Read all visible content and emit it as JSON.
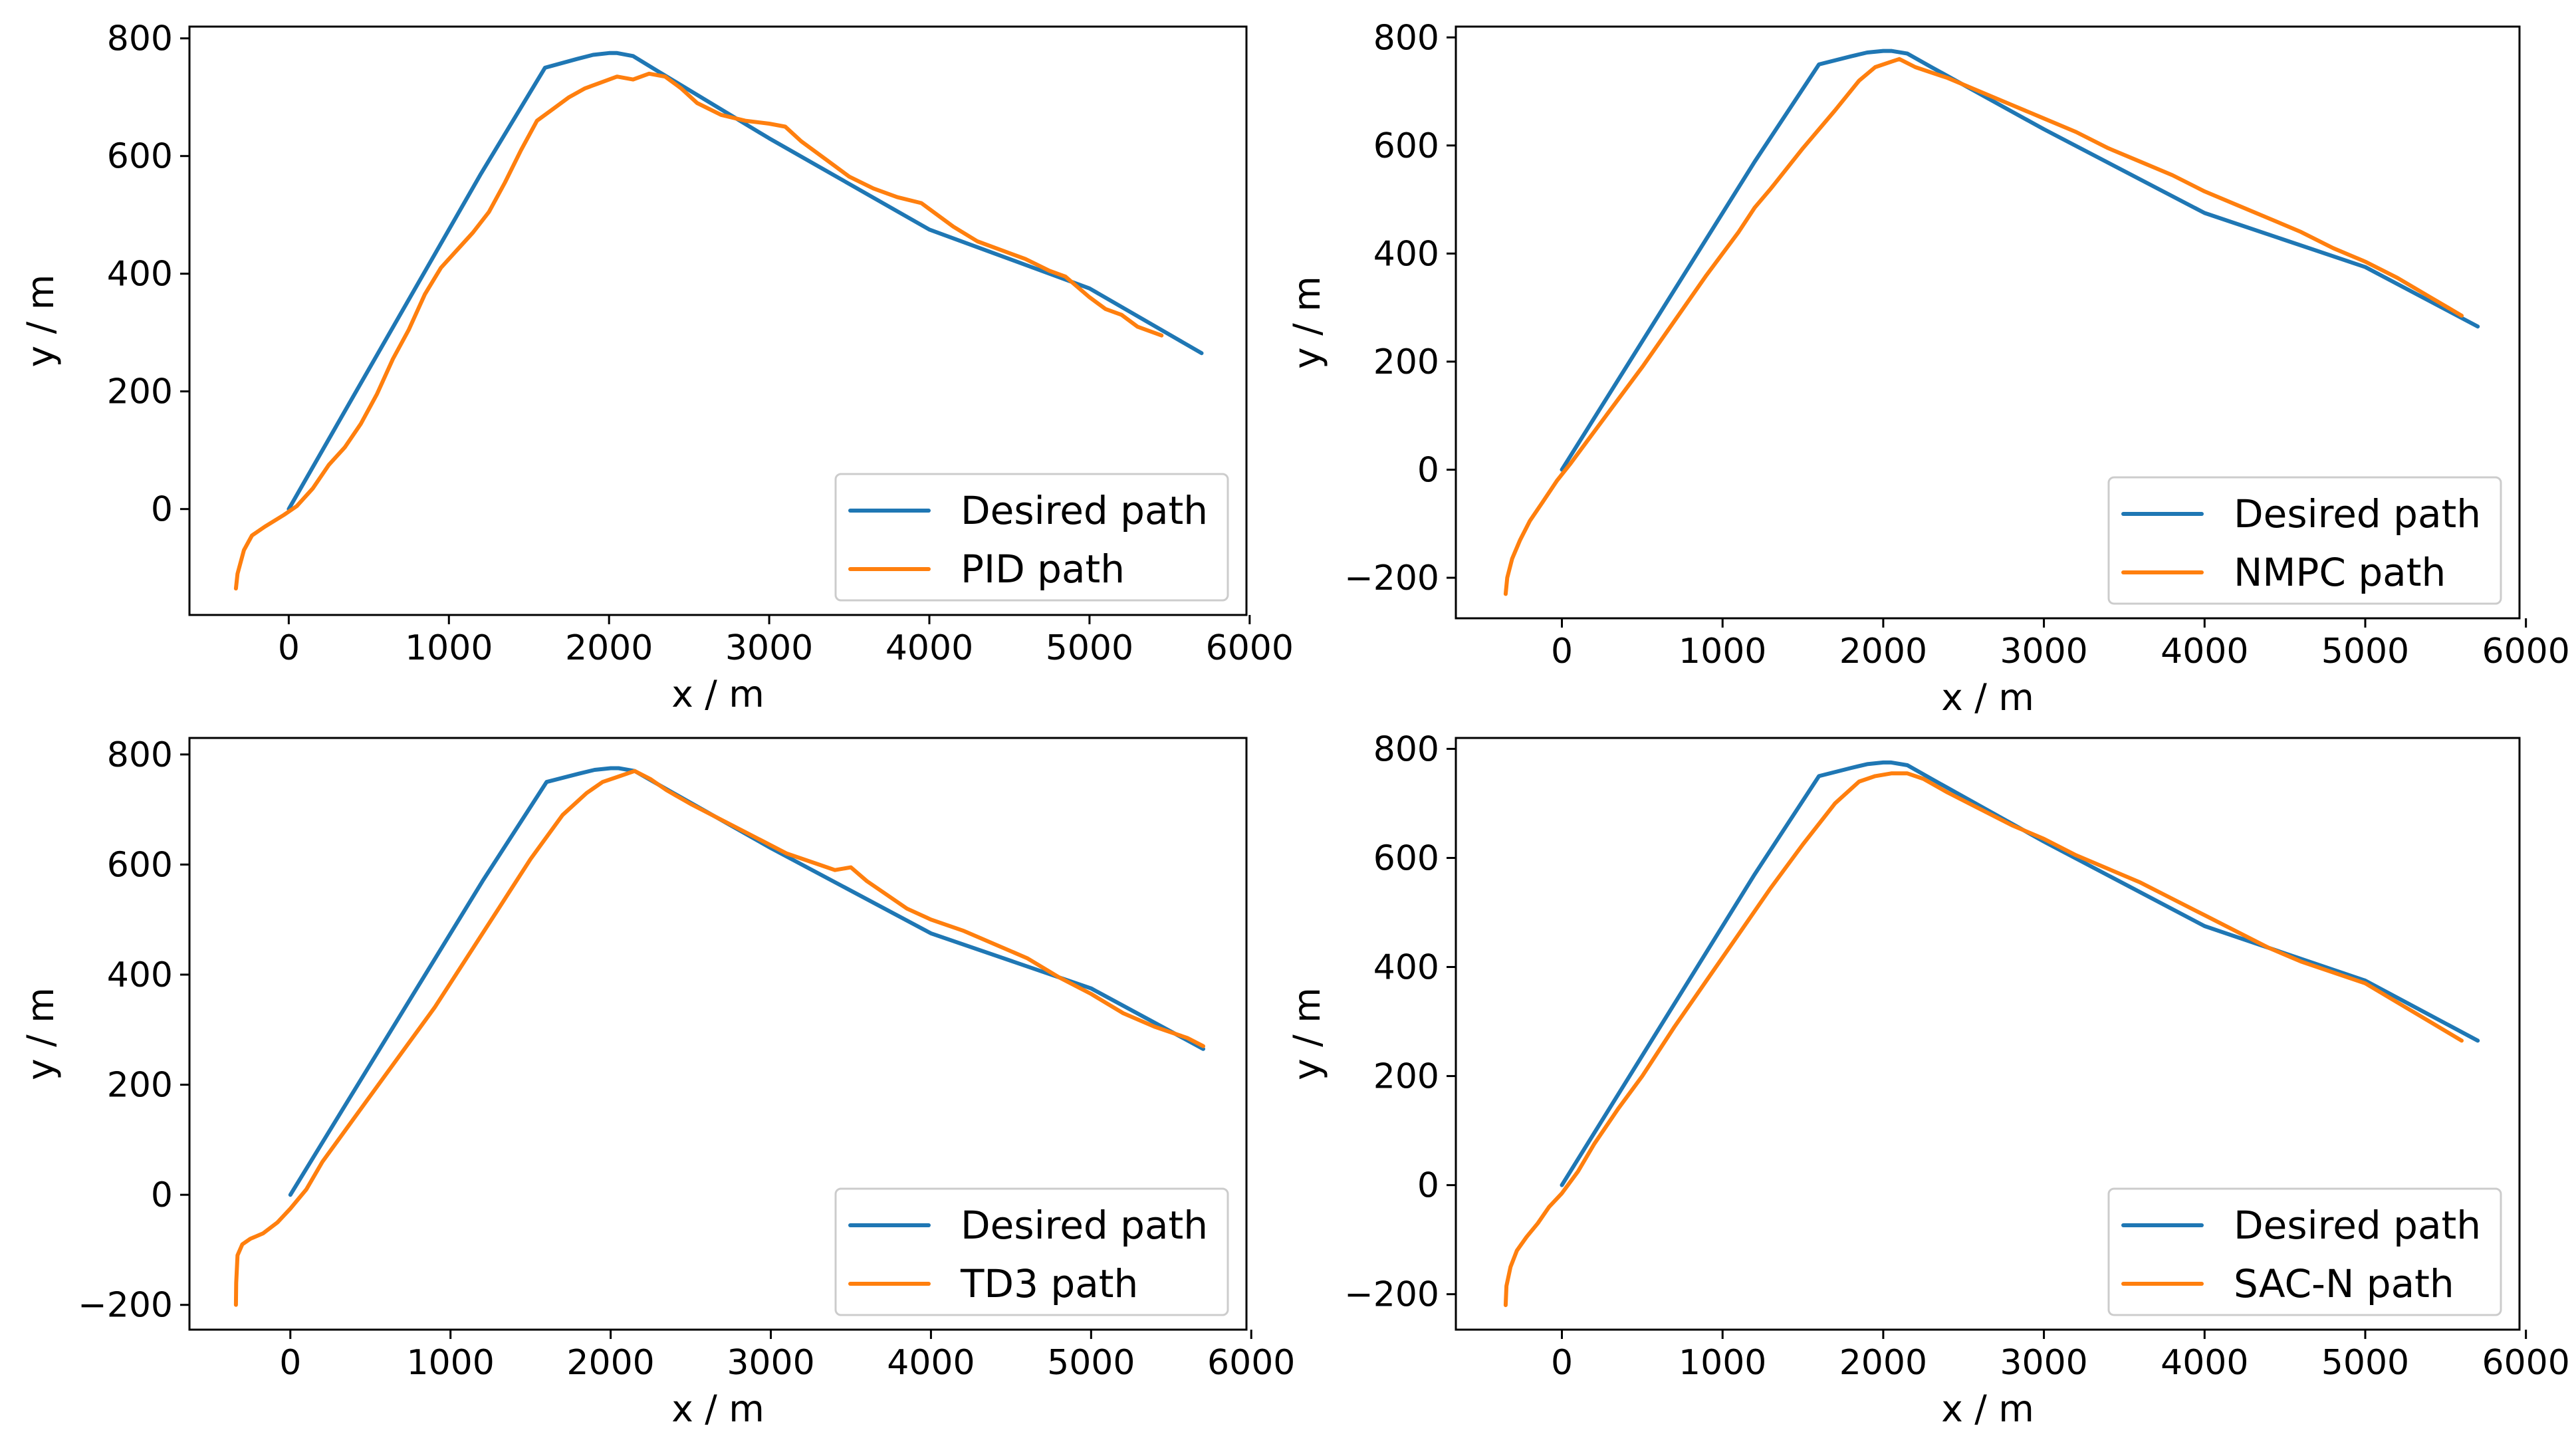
{
  "colors": {
    "desired": "#1f77b4",
    "controller": "#ff7f0e"
  },
  "chart_data": [
    {
      "type": "line",
      "xlabel": "x / m",
      "ylabel": "y / m",
      "xlim": [
        -620,
        5980
      ],
      "ylim": [
        -180,
        820
      ],
      "xticks": [
        0,
        1000,
        2000,
        3000,
        4000,
        5000,
        6000
      ],
      "yticks": [
        0,
        200,
        400,
        600,
        800
      ],
      "xtick_labels": [
        "0",
        "1000",
        "2000",
        "3000",
        "4000",
        "5000",
        "6000"
      ],
      "ytick_labels": [
        "0",
        "200",
        "400",
        "600",
        "800"
      ],
      "legend_position": "lower-right",
      "series": [
        {
          "name": "Desired path",
          "color_key": "desired",
          "x": [
            0,
            400,
            800,
            1200,
            1600,
            1800,
            1900,
            2000,
            2050,
            2150,
            2300,
            3000,
            4000,
            5000,
            5700
          ],
          "y": [
            0,
            190,
            380,
            570,
            750,
            765,
            772,
            775,
            775,
            770,
            745,
            630,
            475,
            375,
            265
          ]
        },
        {
          "name": "PID path",
          "color_key": "controller",
          "x": [
            -330,
            -320,
            -280,
            -230,
            -150,
            -30,
            50,
            150,
            250,
            350,
            450,
            550,
            650,
            750,
            850,
            950,
            1050,
            1150,
            1250,
            1350,
            1450,
            1550,
            1650,
            1750,
            1850,
            1950,
            2050,
            2150,
            2250,
            2350,
            2450,
            2550,
            2700,
            2850,
            3000,
            3100,
            3200,
            3350,
            3500,
            3650,
            3800,
            3950,
            4050,
            4150,
            4300,
            4450,
            4600,
            4750,
            4850,
            5000,
            5100,
            5200,
            5300,
            5450
          ],
          "y": [
            -135,
            -110,
            -70,
            -45,
            -30,
            -10,
            5,
            35,
            75,
            105,
            145,
            195,
            255,
            305,
            365,
            410,
            440,
            470,
            505,
            555,
            610,
            660,
            680,
            700,
            715,
            725,
            735,
            730,
            740,
            735,
            715,
            690,
            670,
            660,
            655,
            650,
            625,
            595,
            565,
            545,
            530,
            520,
            500,
            480,
            455,
            440,
            425,
            405,
            395,
            360,
            340,
            330,
            310,
            295
          ]
        }
      ]
    },
    {
      "type": "line",
      "xlabel": "x / m",
      "ylabel": "y / m",
      "xlim": [
        -660,
        5960
      ],
      "ylim": [
        -275,
        820
      ],
      "xticks": [
        0,
        1000,
        2000,
        3000,
        4000,
        5000,
        6000
      ],
      "yticks": [
        -200,
        0,
        200,
        400,
        600,
        800
      ],
      "xtick_labels": [
        "0",
        "1000",
        "2000",
        "3000",
        "4000",
        "5000",
        "6000"
      ],
      "ytick_labels": [
        "−200",
        "0",
        "200",
        "400",
        "600",
        "800"
      ],
      "legend_position": "lower-right",
      "series": [
        {
          "name": "Desired path",
          "color_key": "desired",
          "x": [
            0,
            400,
            800,
            1200,
            1600,
            1800,
            1900,
            2000,
            2050,
            2150,
            2300,
            3000,
            4000,
            5000,
            5700
          ],
          "y": [
            0,
            190,
            380,
            570,
            750,
            765,
            772,
            775,
            775,
            770,
            745,
            630,
            475,
            375,
            265
          ]
        },
        {
          "name": "NMPC path",
          "color_key": "controller",
          "x": [
            -350,
            -340,
            -310,
            -260,
            -200,
            -120,
            -30,
            50,
            150,
            300,
            500,
            700,
            900,
            1100,
            1200,
            1300,
            1500,
            1700,
            1850,
            1950,
            2050,
            2100,
            2200,
            2400,
            2600,
            2800,
            3000,
            3200,
            3400,
            3600,
            3800,
            4000,
            4200,
            4400,
            4600,
            4800,
            5000,
            5200,
            5400,
            5600
          ],
          "y": [
            -230,
            -200,
            -165,
            -130,
            -95,
            -60,
            -20,
            10,
            50,
            110,
            190,
            275,
            360,
            440,
            485,
            520,
            595,
            665,
            720,
            745,
            755,
            760,
            745,
            725,
            700,
            675,
            650,
            625,
            595,
            570,
            545,
            515,
            490,
            465,
            440,
            410,
            385,
            355,
            320,
            285
          ]
        }
      ]
    },
    {
      "type": "line",
      "xlabel": "x / m",
      "ylabel": "y / m",
      "xlim": [
        -630,
        5970
      ],
      "ylim": [
        -245,
        830
      ],
      "xticks": [
        0,
        1000,
        2000,
        3000,
        4000,
        5000,
        6000
      ],
      "yticks": [
        -200,
        0,
        200,
        400,
        600,
        800
      ],
      "xtick_labels": [
        "0",
        "1000",
        "2000",
        "3000",
        "4000",
        "5000",
        "6000"
      ],
      "ytick_labels": [
        "−200",
        "0",
        "200",
        "400",
        "600",
        "800"
      ],
      "legend_position": "lower-right",
      "series": [
        {
          "name": "Desired path",
          "color_key": "desired",
          "x": [
            0,
            400,
            800,
            1200,
            1600,
            1800,
            1900,
            2000,
            2050,
            2150,
            2300,
            3000,
            4000,
            5000,
            5700
          ],
          "y": [
            0,
            190,
            380,
            570,
            750,
            765,
            772,
            775,
            775,
            770,
            745,
            630,
            475,
            375,
            265
          ]
        },
        {
          "name": "TD3 path",
          "color_key": "controller",
          "x": [
            -340,
            -338,
            -330,
            -300,
            -250,
            -170,
            -80,
            0,
            100,
            200,
            350,
            500,
            700,
            900,
            1100,
            1300,
            1500,
            1700,
            1850,
            1950,
            2050,
            2150,
            2250,
            2350,
            2500,
            2700,
            2900,
            3100,
            3300,
            3400,
            3500,
            3600,
            3700,
            3850,
            4000,
            4200,
            4400,
            4600,
            4800,
            5000,
            5200,
            5400,
            5600,
            5700
          ],
          "y": [
            -200,
            -160,
            -110,
            -90,
            -80,
            -70,
            -50,
            -25,
            10,
            60,
            120,
            180,
            260,
            340,
            430,
            520,
            610,
            690,
            730,
            750,
            760,
            770,
            755,
            735,
            710,
            680,
            650,
            620,
            600,
            590,
            595,
            570,
            550,
            520,
            500,
            480,
            455,
            430,
            395,
            365,
            330,
            305,
            285,
            270
          ]
        }
      ]
    },
    {
      "type": "line",
      "xlabel": "x / m",
      "ylabel": "y / m",
      "xlim": [
        -660,
        5960
      ],
      "ylim": [
        -265,
        820
      ],
      "xticks": [
        0,
        1000,
        2000,
        3000,
        4000,
        5000,
        6000
      ],
      "yticks": [
        -200,
        0,
        200,
        400,
        600,
        800
      ],
      "xtick_labels": [
        "0",
        "1000",
        "2000",
        "3000",
        "4000",
        "5000",
        "6000"
      ],
      "ytick_labels": [
        "−200",
        "0",
        "200",
        "400",
        "600",
        "800"
      ],
      "legend_position": "lower-right",
      "series": [
        {
          "name": "Desired path",
          "color_key": "desired",
          "x": [
            0,
            400,
            800,
            1200,
            1600,
            1800,
            1900,
            2000,
            2050,
            2150,
            2300,
            3000,
            4000,
            5000,
            5700
          ],
          "y": [
            0,
            190,
            380,
            570,
            750,
            765,
            772,
            775,
            775,
            770,
            745,
            630,
            475,
            375,
            265
          ]
        },
        {
          "name": "SAC-N path",
          "color_key": "controller",
          "x": [
            -350,
            -345,
            -320,
            -280,
            -220,
            -150,
            -80,
            0,
            100,
            200,
            350,
            500,
            700,
            900,
            1100,
            1300,
            1500,
            1700,
            1850,
            1950,
            2050,
            2150,
            2250,
            2400,
            2600,
            2800,
            3000,
            3200,
            3400,
            3600,
            3800,
            4000,
            4200,
            4400,
            4600,
            4800,
            5000,
            5200,
            5400,
            5600
          ],
          "y": [
            -220,
            -185,
            -150,
            -120,
            -95,
            -70,
            -40,
            -15,
            25,
            75,
            140,
            200,
            290,
            375,
            460,
            545,
            625,
            700,
            740,
            750,
            755,
            755,
            745,
            720,
            690,
            660,
            635,
            605,
            580,
            555,
            525,
            495,
            465,
            435,
            410,
            390,
            370,
            335,
            300,
            265
          ]
        }
      ]
    }
  ]
}
